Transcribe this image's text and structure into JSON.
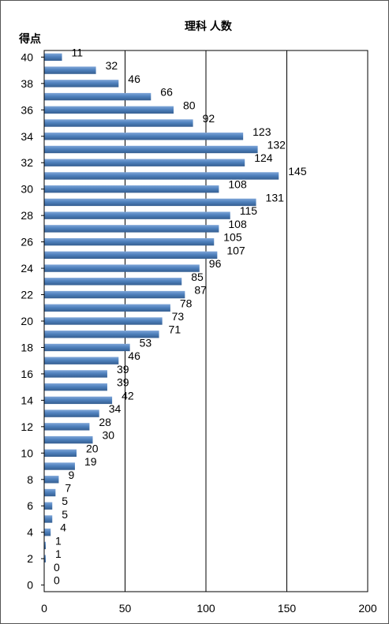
{
  "chart_data": {
    "type": "bar",
    "orientation": "horizontal",
    "title": "理科 人数",
    "ylabel": "得点",
    "xlabel": "",
    "xlim": [
      0,
      200
    ],
    "x_ticks": [
      0,
      50,
      100,
      150,
      200
    ],
    "y_ticks": [
      0,
      2,
      4,
      6,
      8,
      10,
      12,
      14,
      16,
      18,
      20,
      22,
      24,
      26,
      28,
      30,
      32,
      34,
      36,
      38,
      40
    ],
    "grid": "vertical",
    "categories": [
      40,
      39,
      38,
      37,
      36,
      35,
      34,
      33,
      32,
      31,
      30,
      29,
      28,
      27,
      26,
      25,
      24,
      23,
      22,
      21,
      20,
      19,
      18,
      17,
      16,
      15,
      14,
      13,
      12,
      11,
      10,
      9,
      8,
      7,
      6,
      5,
      4,
      3,
      2,
      1,
      0
    ],
    "values": [
      11,
      32,
      46,
      66,
      80,
      92,
      123,
      132,
      124,
      145,
      108,
      131,
      115,
      108,
      105,
      107,
      96,
      85,
      87,
      78,
      73,
      71,
      53,
      46,
      39,
      39,
      42,
      34,
      28,
      30,
      20,
      19,
      9,
      7,
      5,
      5,
      4,
      1,
      1,
      0,
      0
    ],
    "bar_color": "#4f81bd"
  }
}
